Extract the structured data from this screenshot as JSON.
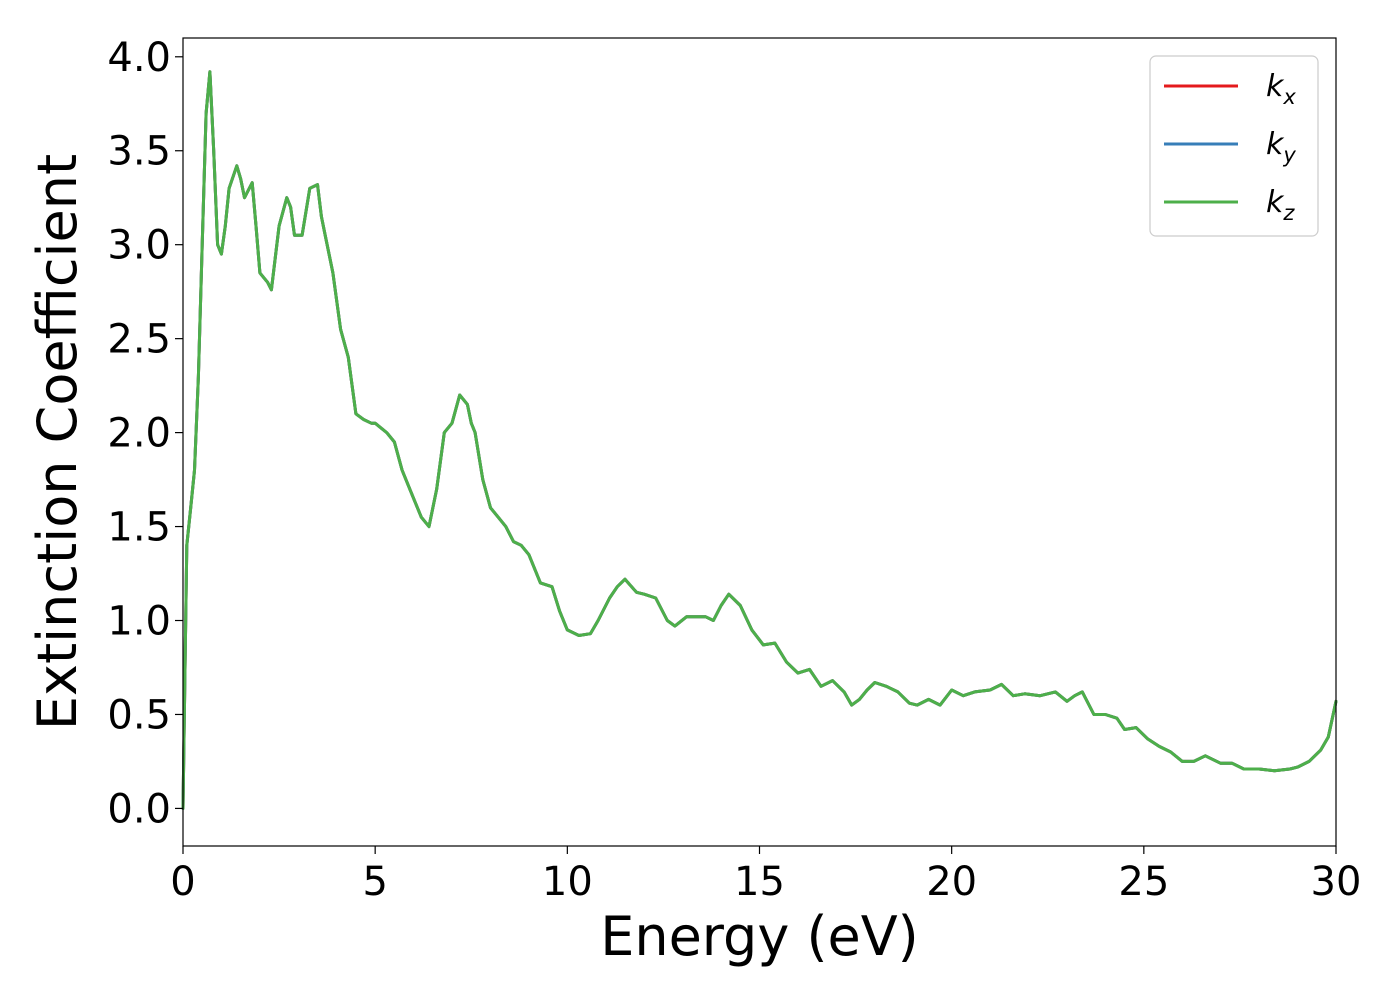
{
  "chart_data": {
    "type": "line",
    "title": "",
    "xlabel": "Energy (eV)",
    "ylabel": "Extinction Coefficient",
    "xlim": [
      0,
      30
    ],
    "ylim": [
      -0.2,
      4.1
    ],
    "xticks": [
      0,
      5,
      10,
      15,
      20,
      25,
      30
    ],
    "xtick_labels": [
      "0",
      "5",
      "10",
      "15",
      "20",
      "25",
      "30"
    ],
    "yticks": [
      0.0,
      0.5,
      1.0,
      1.5,
      2.0,
      2.5,
      3.0,
      3.5,
      4.0
    ],
    "ytick_labels": [
      "0.0",
      "0.5",
      "1.0",
      "1.5",
      "2.0",
      "2.5",
      "3.0",
      "3.5",
      "4.0"
    ],
    "grid": false,
    "legend_position": "top-right",
    "x": [
      0,
      0.1,
      0.2,
      0.3,
      0.4,
      0.5,
      0.6,
      0.7,
      0.8,
      0.9,
      1.0,
      1.1,
      1.2,
      1.4,
      1.5,
      1.6,
      1.8,
      1.9,
      2.0,
      2.2,
      2.3,
      2.5,
      2.7,
      2.8,
      2.9,
      3.1,
      3.3,
      3.5,
      3.6,
      3.7,
      3.9,
      4.1,
      4.3,
      4.5,
      4.7,
      4.9,
      5.0,
      5.3,
      5.5,
      5.7,
      6.0,
      6.2,
      6.4,
      6.6,
      6.8,
      7.0,
      7.2,
      7.4,
      7.5,
      7.6,
      7.8,
      8.0,
      8.2,
      8.4,
      8.6,
      8.8,
      9.0,
      9.3,
      9.6,
      9.8,
      10.0,
      10.3,
      10.6,
      10.8,
      11.1,
      11.3,
      11.5,
      11.8,
      12.0,
      12.3,
      12.6,
      12.8,
      13.1,
      13.3,
      13.6,
      13.8,
      14.0,
      14.2,
      14.5,
      14.8,
      15.1,
      15.4,
      15.7,
      16.0,
      16.3,
      16.6,
      16.9,
      17.2,
      17.4,
      17.6,
      17.8,
      18.0,
      18.3,
      18.6,
      18.9,
      19.1,
      19.4,
      19.7,
      20.0,
      20.3,
      20.6,
      21.0,
      21.3,
      21.6,
      21.9,
      22.3,
      22.7,
      23.0,
      23.2,
      23.4,
      23.7,
      24.0,
      24.3,
      24.5,
      24.8,
      25.1,
      25.4,
      25.7,
      26.0,
      26.3,
      26.6,
      27.0,
      27.3,
      27.6,
      28.0,
      28.4,
      28.8,
      29.0,
      29.3,
      29.6,
      29.8,
      30.0
    ],
    "series": [
      {
        "name": "k_x",
        "label_base": "k",
        "label_sub": "x",
        "color": "#e41a1c",
        "values": [
          0.0,
          1.4,
          1.6,
          1.8,
          2.3,
          3.0,
          3.7,
          3.92,
          3.5,
          3.0,
          2.95,
          3.1,
          3.3,
          3.42,
          3.35,
          3.25,
          3.33,
          3.1,
          2.85,
          2.8,
          2.76,
          3.1,
          3.25,
          3.2,
          3.05,
          3.05,
          3.3,
          3.32,
          3.15,
          3.05,
          2.85,
          2.55,
          2.4,
          2.1,
          2.07,
          2.05,
          2.05,
          2.0,
          1.95,
          1.8,
          1.65,
          1.55,
          1.5,
          1.7,
          2.0,
          2.05,
          2.2,
          2.15,
          2.05,
          2.0,
          1.75,
          1.6,
          1.55,
          1.5,
          1.42,
          1.4,
          1.35,
          1.2,
          1.18,
          1.05,
          0.95,
          0.92,
          0.93,
          1.0,
          1.12,
          1.18,
          1.22,
          1.15,
          1.14,
          1.12,
          1.0,
          0.97,
          1.02,
          1.02,
          1.02,
          1.0,
          1.08,
          1.14,
          1.08,
          0.95,
          0.87,
          0.88,
          0.78,
          0.72,
          0.74,
          0.65,
          0.68,
          0.62,
          0.55,
          0.58,
          0.63,
          0.67,
          0.65,
          0.62,
          0.56,
          0.55,
          0.58,
          0.55,
          0.63,
          0.6,
          0.62,
          0.63,
          0.66,
          0.6,
          0.61,
          0.6,
          0.62,
          0.57,
          0.6,
          0.62,
          0.5,
          0.5,
          0.48,
          0.42,
          0.43,
          0.37,
          0.33,
          0.3,
          0.25,
          0.25,
          0.28,
          0.24,
          0.24,
          0.21,
          0.21,
          0.2,
          0.21,
          0.22,
          0.25,
          0.31,
          0.38,
          0.57
        ]
      },
      {
        "name": "k_y",
        "label_base": "k",
        "label_sub": "y",
        "color": "#377eb8",
        "values": [
          0.0,
          1.4,
          1.6,
          1.8,
          2.3,
          3.0,
          3.7,
          3.92,
          3.5,
          3.0,
          2.95,
          3.1,
          3.3,
          3.42,
          3.35,
          3.25,
          3.33,
          3.1,
          2.85,
          2.8,
          2.76,
          3.1,
          3.25,
          3.2,
          3.05,
          3.05,
          3.3,
          3.32,
          3.15,
          3.05,
          2.85,
          2.55,
          2.4,
          2.1,
          2.07,
          2.05,
          2.05,
          2.0,
          1.95,
          1.8,
          1.65,
          1.55,
          1.5,
          1.7,
          2.0,
          2.05,
          2.2,
          2.15,
          2.05,
          2.0,
          1.75,
          1.6,
          1.55,
          1.5,
          1.42,
          1.4,
          1.35,
          1.2,
          1.18,
          1.05,
          0.95,
          0.92,
          0.93,
          1.0,
          1.12,
          1.18,
          1.22,
          1.15,
          1.14,
          1.12,
          1.0,
          0.97,
          1.02,
          1.02,
          1.02,
          1.0,
          1.08,
          1.14,
          1.08,
          0.95,
          0.87,
          0.88,
          0.78,
          0.72,
          0.74,
          0.65,
          0.68,
          0.62,
          0.55,
          0.58,
          0.63,
          0.67,
          0.65,
          0.62,
          0.56,
          0.55,
          0.58,
          0.55,
          0.63,
          0.6,
          0.62,
          0.63,
          0.66,
          0.6,
          0.61,
          0.6,
          0.62,
          0.57,
          0.6,
          0.62,
          0.5,
          0.5,
          0.48,
          0.42,
          0.43,
          0.37,
          0.33,
          0.3,
          0.25,
          0.25,
          0.28,
          0.24,
          0.24,
          0.21,
          0.21,
          0.2,
          0.21,
          0.22,
          0.25,
          0.31,
          0.38,
          0.57
        ]
      },
      {
        "name": "k_z",
        "label_base": "k",
        "label_sub": "z",
        "color": "#4daf4a",
        "values": [
          0.0,
          1.4,
          1.6,
          1.8,
          2.3,
          3.0,
          3.7,
          3.92,
          3.5,
          3.0,
          2.95,
          3.1,
          3.3,
          3.42,
          3.35,
          3.25,
          3.33,
          3.1,
          2.85,
          2.8,
          2.76,
          3.1,
          3.25,
          3.2,
          3.05,
          3.05,
          3.3,
          3.32,
          3.15,
          3.05,
          2.85,
          2.55,
          2.4,
          2.1,
          2.07,
          2.05,
          2.05,
          2.0,
          1.95,
          1.8,
          1.65,
          1.55,
          1.5,
          1.7,
          2.0,
          2.05,
          2.2,
          2.15,
          2.05,
          2.0,
          1.75,
          1.6,
          1.55,
          1.5,
          1.42,
          1.4,
          1.35,
          1.2,
          1.18,
          1.05,
          0.95,
          0.92,
          0.93,
          1.0,
          1.12,
          1.18,
          1.22,
          1.15,
          1.14,
          1.12,
          1.0,
          0.97,
          1.02,
          1.02,
          1.02,
          1.0,
          1.08,
          1.14,
          1.08,
          0.95,
          0.87,
          0.88,
          0.78,
          0.72,
          0.74,
          0.65,
          0.68,
          0.62,
          0.55,
          0.58,
          0.63,
          0.67,
          0.65,
          0.62,
          0.56,
          0.55,
          0.58,
          0.55,
          0.63,
          0.6,
          0.62,
          0.63,
          0.66,
          0.6,
          0.61,
          0.6,
          0.62,
          0.57,
          0.6,
          0.62,
          0.5,
          0.5,
          0.48,
          0.42,
          0.43,
          0.37,
          0.33,
          0.3,
          0.25,
          0.25,
          0.28,
          0.24,
          0.24,
          0.21,
          0.21,
          0.2,
          0.21,
          0.22,
          0.25,
          0.31,
          0.38,
          0.57
        ]
      }
    ]
  }
}
